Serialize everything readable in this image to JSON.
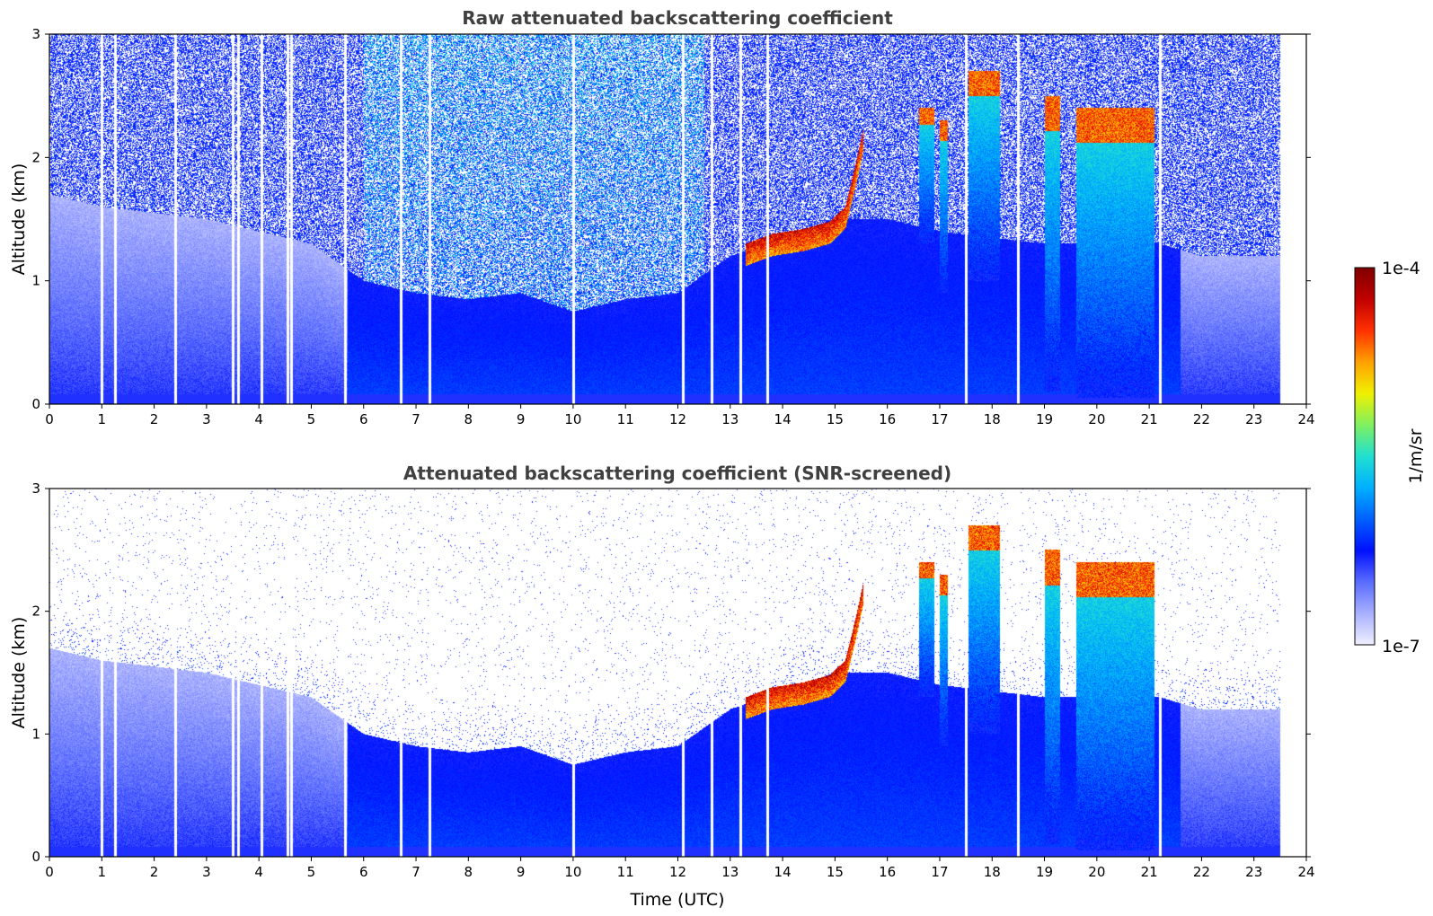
{
  "chart_data": [
    {
      "type": "heatmap",
      "title": "Raw attenuated backscattering coefficient",
      "xlabel": "",
      "ylabel": "Altitude (km)",
      "xlim": [
        0,
        24
      ],
      "ylim": [
        0,
        3
      ],
      "xticks": [
        "0",
        "1",
        "2",
        "3",
        "4",
        "5",
        "6",
        "7",
        "8",
        "9",
        "10",
        "11",
        "12",
        "13",
        "14",
        "15",
        "16",
        "17",
        "18",
        "19",
        "20",
        "21",
        "22",
        "23",
        "24"
      ],
      "yticks": [
        "0",
        "1",
        "2",
        "3"
      ],
      "data_end_hour": 23.5,
      "data_gaps_hours": [
        1.0,
        1.25,
        2.4,
        3.5,
        3.6,
        4.05,
        4.55,
        4.62,
        5.65,
        6.7,
        7.25,
        10.0,
        12.1,
        12.65,
        13.2,
        13.7,
        17.5,
        18.5,
        21.2
      ]
    },
    {
      "type": "heatmap",
      "title": "Attenuated backscattering coefficient (SNR-screened)",
      "xlabel": "Time (UTC)",
      "ylabel": "Altitude (km)",
      "xlim": [
        0,
        24
      ],
      "ylim": [
        0,
        3
      ],
      "xticks": [
        "0",
        "1",
        "2",
        "3",
        "4",
        "5",
        "6",
        "7",
        "8",
        "9",
        "10",
        "11",
        "12",
        "13",
        "14",
        "15",
        "16",
        "17",
        "18",
        "19",
        "20",
        "21",
        "22",
        "23",
        "24"
      ],
      "yticks": [
        "0",
        "1",
        "2",
        "3"
      ],
      "data_end_hour": 23.5,
      "data_gaps_hours": [
        1.0,
        1.25,
        2.4,
        3.5,
        3.6,
        4.05,
        4.55,
        4.62,
        5.65,
        6.7,
        7.25,
        10.0,
        12.1,
        12.65,
        13.2,
        13.7,
        17.5,
        18.5,
        21.2
      ]
    }
  ],
  "colorbar": {
    "label": "1/m/sr",
    "max_label": "1e-4",
    "min_label": "1e-7",
    "colormap": [
      "#f0f0ff",
      "#a8b0ff",
      "#5a6cff",
      "#0010ff",
      "#0060ff",
      "#00b0ff",
      "#20e0d0",
      "#80f060",
      "#f0f000",
      "#ffa000",
      "#ff3000",
      "#c00000",
      "#800000"
    ]
  },
  "features": {
    "boundary_layer_top_km": [
      {
        "h": 0,
        "v": 1.7
      },
      {
        "h": 1,
        "v": 1.6
      },
      {
        "h": 3,
        "v": 1.5
      },
      {
        "h": 5,
        "v": 1.3
      },
      {
        "h": 6,
        "v": 1.0
      },
      {
        "h": 7,
        "v": 0.9
      },
      {
        "h": 8,
        "v": 0.85
      },
      {
        "h": 9,
        "v": 0.9
      },
      {
        "h": 10,
        "v": 0.75
      },
      {
        "h": 11,
        "v": 0.85
      },
      {
        "h": 12,
        "v": 0.9
      },
      {
        "h": 13,
        "v": 1.2
      },
      {
        "h": 14,
        "v": 1.35
      },
      {
        "h": 15,
        "v": 1.5
      },
      {
        "h": 16,
        "v": 1.5
      },
      {
        "h": 17,
        "v": 1.4
      },
      {
        "h": 19,
        "v": 1.3
      },
      {
        "h": 21.2,
        "v": 1.3
      },
      {
        "h": 22,
        "v": 1.2
      },
      {
        "h": 23.5,
        "v": 1.2
      }
    ],
    "cloud_layer_km": [
      {
        "h": 13.3,
        "v": 1.3
      },
      {
        "h": 13.8,
        "v": 1.38
      },
      {
        "h": 14.4,
        "v": 1.42
      },
      {
        "h": 14.9,
        "v": 1.48
      },
      {
        "h": 15.2,
        "v": 1.6
      },
      {
        "h": 15.4,
        "v": 1.95
      },
      {
        "h": 15.55,
        "v": 2.25
      }
    ],
    "convective_cells": [
      {
        "t0": 16.6,
        "t1": 16.9,
        "top": 2.4,
        "bottom": 1.3
      },
      {
        "t0": 17.0,
        "t1": 17.15,
        "top": 2.3,
        "bottom": 0.9
      },
      {
        "t0": 17.55,
        "t1": 18.15,
        "top": 2.7,
        "bottom": 1.0
      },
      {
        "t0": 19.0,
        "t1": 19.3,
        "top": 2.5,
        "bottom": 0.1
      },
      {
        "t0": 19.6,
        "t1": 21.1,
        "top": 2.4,
        "bottom": 0.05
      }
    ]
  }
}
